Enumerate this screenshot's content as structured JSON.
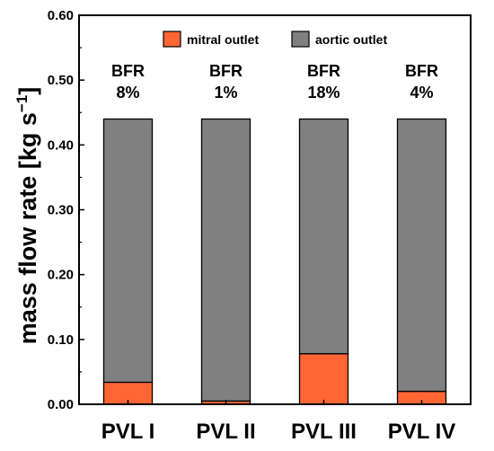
{
  "chart_data": {
    "type": "bar",
    "stacked": true,
    "categories": [
      "PVL I",
      "PVL II",
      "PVL III",
      "PVL IV"
    ],
    "series": [
      {
        "name": "mitral outlet",
        "color": "#ff6633",
        "values": [
          0.034,
          0.005,
          0.078,
          0.02
        ]
      },
      {
        "name": "aortic outlet",
        "color": "#808080",
        "values": [
          0.406,
          0.435,
          0.362,
          0.42
        ]
      }
    ],
    "totals": [
      0.44,
      0.44,
      0.44,
      0.44
    ],
    "annotations": [
      {
        "line1": "BFR",
        "line2": "8%"
      },
      {
        "line1": "BFR",
        "line2": "1%"
      },
      {
        "line1": "BFR",
        "line2": "18%"
      },
      {
        "line1": "BFR",
        "line2": "4%"
      }
    ],
    "ylabel_main": "mass flow rate [kg s",
    "ylabel_sup": "−1",
    "ylabel_close": "]",
    "xlabel": "",
    "ylim": [
      0,
      0.6
    ],
    "yticks": [
      "0.00",
      "0.10",
      "0.20",
      "0.30",
      "0.40",
      "0.50",
      "0.60"
    ],
    "legend_position": "top",
    "grid": false
  }
}
